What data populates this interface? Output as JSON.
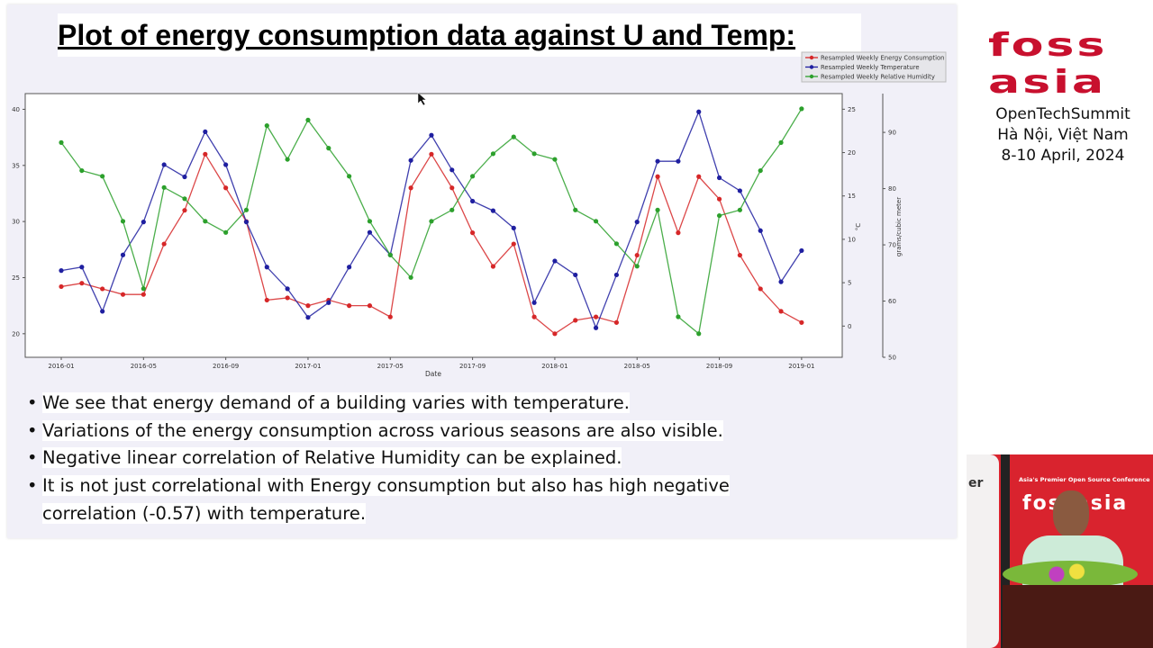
{
  "slide": {
    "title": "Plot of energy consumption data against U and Temp:",
    "bullets": [
      "We see that energy demand of a building varies with temperature.",
      "Variations of the energy consumption across various seasons are also visible.",
      "Negative linear correlation of Relative Humidity can be explained.",
      "It is not just correlational with Energy consumption but also has high negative correlation (-0.57) with temperature."
    ]
  },
  "branding": {
    "logo_line1": "foss",
    "logo_line2": "asia",
    "event_name": "OpenTechSummit",
    "location": "Hà Nội, Việt Nam",
    "dates": "8-10 April, 2024",
    "brand_color": "#c8102e"
  },
  "speaker_video": {
    "banner_text": "Asia's Premier Open Source Conference",
    "banner_logo": "fossasia",
    "side_text": "er"
  },
  "chart_data": {
    "type": "line",
    "xlabel": "Date",
    "x_ticks": [
      "2016-01",
      "2016-05",
      "2016-09",
      "2017-01",
      "2017-05",
      "2017-09",
      "2018-01",
      "2018-05",
      "2018-09",
      "2019-01"
    ],
    "x": [
      "2016-01",
      "2016-02",
      "2016-03",
      "2016-04",
      "2016-05",
      "2016-06",
      "2016-07",
      "2016-08",
      "2016-09",
      "2016-10",
      "2016-11",
      "2016-12",
      "2017-01",
      "2017-02",
      "2017-03",
      "2017-04",
      "2017-05",
      "2017-06",
      "2017-07",
      "2017-08",
      "2017-09",
      "2017-10",
      "2017-11",
      "2017-12",
      "2018-01",
      "2018-02",
      "2018-03",
      "2018-04",
      "2018-05",
      "2018-06",
      "2018-07",
      "2018-08",
      "2018-09",
      "2018-10",
      "2018-11",
      "2018-12",
      "2019-01"
    ],
    "axes": {
      "left": {
        "label": "",
        "ylim": [
          17.9,
          41.4
        ],
        "ticks": [
          20,
          25,
          30,
          35,
          40
        ]
      },
      "right1": {
        "label": "°C",
        "ylim": [
          -3.6,
          26.8
        ],
        "ticks": [
          0,
          5,
          10,
          15,
          20,
          25
        ]
      },
      "right2": {
        "label": "grams/cubic meter",
        "ylim": [
          50,
          96.9
        ],
        "ticks": [
          50,
          60,
          70,
          80,
          90
        ]
      }
    },
    "grid": false,
    "legend_position": "top-right",
    "series": [
      {
        "name": "Resampled Weekly Energy Consumption",
        "axis": "left",
        "color": "#d62728",
        "values": [
          24.2,
          24.5,
          24.0,
          23.5,
          23.5,
          28,
          31,
          36,
          33,
          30,
          23,
          23.2,
          22.5,
          23,
          22.5,
          22.5,
          21.5,
          33,
          36,
          33,
          29,
          26,
          28,
          21.5,
          20,
          21.2,
          21.5,
          21,
          27,
          34,
          29,
          34,
          32,
          27,
          24,
          22,
          21
        ]
      },
      {
        "name": "Resampled Weekly Temperature",
        "axis": "right1",
        "color": "#1f1fa0",
        "values": [
          6.4,
          6.8,
          1.7,
          8.2,
          12,
          18.6,
          17.2,
          22.4,
          18.6,
          12,
          6.8,
          4.3,
          1.0,
          2.7,
          6.8,
          10.8,
          8.2,
          19.1,
          22,
          18,
          14.4,
          13.3,
          11.3,
          2.7,
          7.5,
          5.9,
          -0.2,
          5.9,
          12,
          19,
          19,
          24.7,
          17.1,
          15.6,
          11,
          5.1,
          8.7
        ]
      },
      {
        "name": "Resampled Weekly Relative Humidity",
        "axis": "right2",
        "color": "#2ca02c",
        "values": [
          88.2,
          83.2,
          82.2,
          74.2,
          62.2,
          80.2,
          78.2,
          74.2,
          72.2,
          76.2,
          91.2,
          85.2,
          92.2,
          87.2,
          82.2,
          74.2,
          68.2,
          64.2,
          74.2,
          76.2,
          82.2,
          86.2,
          89.2,
          86.2,
          85.2,
          76.2,
          74.2,
          70.2,
          66.2,
          76.2,
          57.2,
          54.2,
          75.2,
          76.2,
          83.2,
          88.2,
          94.2
        ]
      }
    ]
  }
}
